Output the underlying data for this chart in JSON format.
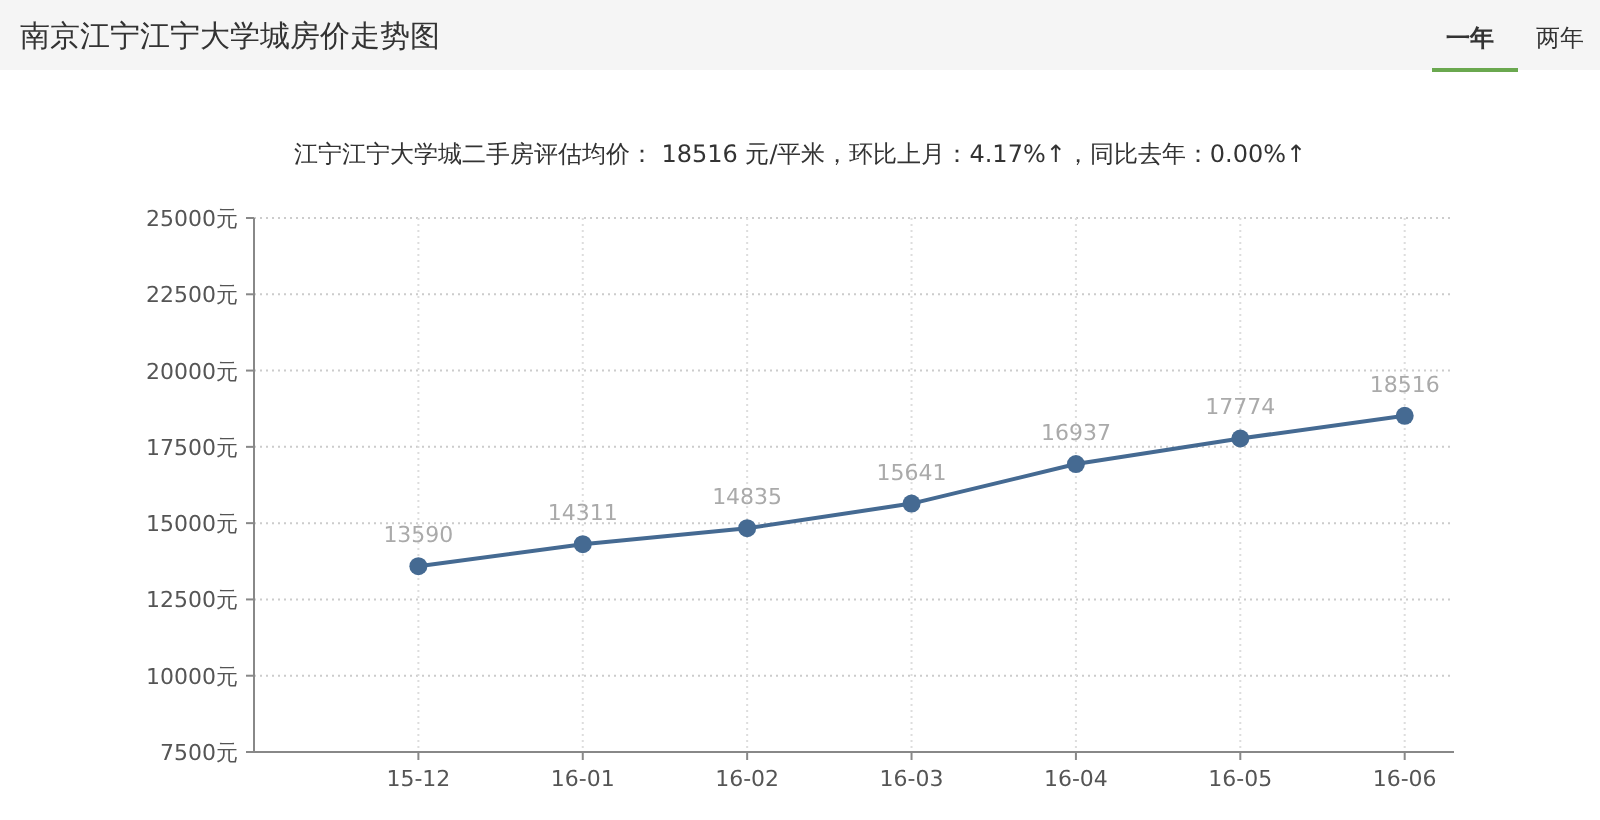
{
  "chart_data": {
    "type": "line",
    "title": "南京江宁江宁大学城房价走势图",
    "subtitle": "江宁江宁大学城二手房评估均价： 18516 元/平米，环比上月：4.17%↑，同比去年：0.00%↑",
    "annotations": [
      "一年",
      "两年"
    ],
    "categories": [
      "15-12",
      "16-01",
      "16-02",
      "16-03",
      "16-04",
      "16-05",
      "16-06"
    ],
    "series": [
      {
        "color": "#456a92",
        "values": [
          13590,
          14311,
          14835,
          15641,
          16937,
          17774,
          18516
        ]
      }
    ],
    "ylim": [
      7500,
      25000
    ],
    "yticks": [
      {
        "value": 7500,
        "label": "7500元"
      },
      {
        "value": 10000,
        "label": "10000元"
      },
      {
        "value": 12500,
        "label": "12500元"
      },
      {
        "value": 15000,
        "label": "15000元"
      },
      {
        "value": 17500,
        "label": "17500元"
      },
      {
        "value": 20000,
        "label": "20000元"
      },
      {
        "value": 22500,
        "label": "22500元"
      },
      {
        "value": 25000,
        "label": "25000元"
      }
    ],
    "grid": true,
    "marker": "circle",
    "line_style": "solid",
    "data_labels": true
  }
}
